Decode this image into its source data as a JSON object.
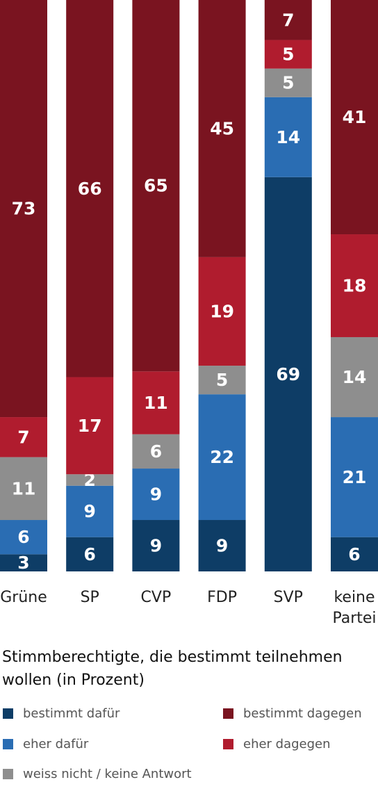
{
  "chart_data": {
    "type": "bar",
    "stacked": true,
    "orientation": "vertical",
    "categories": [
      [
        "Grüne"
      ],
      [
        "SP"
      ],
      [
        "CVP"
      ],
      [
        "FDP"
      ],
      [
        "SVP"
      ],
      [
        "keine",
        "Partei"
      ]
    ],
    "series": [
      {
        "name": "bestimmt dafür",
        "color": "#0e3d66",
        "values": [
          3,
          6,
          9,
          9,
          69,
          6
        ]
      },
      {
        "name": "eher dafür",
        "color": "#2a6db3",
        "values": [
          6,
          9,
          9,
          22,
          14,
          21
        ]
      },
      {
        "name": "weiss nicht / keine Antwort",
        "color": "#8e8e8e",
        "values": [
          11,
          2,
          6,
          5,
          5,
          14
        ]
      },
      {
        "name": "eher dagegen",
        "color": "#b01c2e",
        "values": [
          7,
          17,
          11,
          19,
          5,
          18
        ]
      },
      {
        "name": "bestimmt dagegen",
        "color": "#7a1420",
        "values": [
          73,
          66,
          65,
          45,
          7,
          41
        ]
      }
    ],
    "ylim": [
      0,
      100
    ],
    "grid": false,
    "legend_placement": "bottom",
    "title": "Stimmberechtigte, die bestimmt teilnehmen wollen (in Prozent)"
  },
  "legend_layout": [
    [
      "bestimmt dafür",
      "bestimmt dagegen"
    ],
    [
      "eher dafür",
      "eher dagegen"
    ],
    [
      "weiss nicht / keine Antwort"
    ]
  ]
}
